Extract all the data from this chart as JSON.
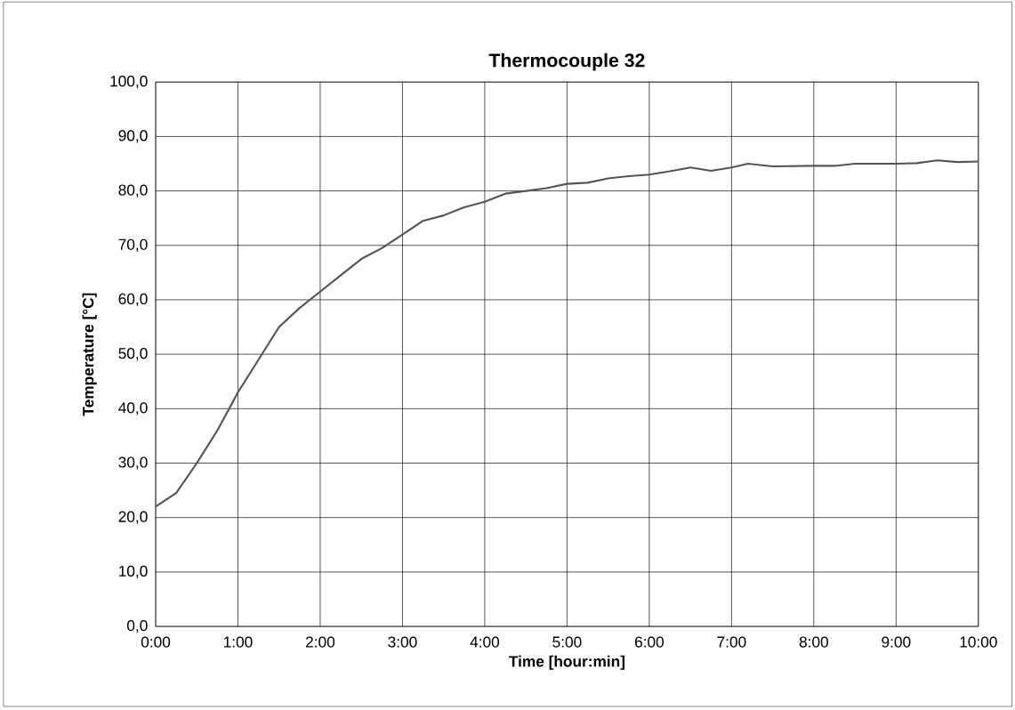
{
  "chart_data": {
    "type": "line",
    "title": "Thermocouple 32",
    "xlabel": "Time [hour:min]",
    "ylabel": "Temperature [°C]",
    "x": [
      0,
      0.25,
      0.5,
      0.75,
      1.0,
      1.25,
      1.5,
      1.75,
      2.0,
      2.25,
      2.5,
      2.75,
      3.0,
      3.25,
      3.5,
      3.75,
      4.0,
      4.25,
      4.5,
      4.75,
      5.0,
      5.25,
      5.5,
      5.75,
      6.0,
      6.25,
      6.5,
      6.75,
      7.0,
      7.2,
      7.5,
      8.0,
      8.25,
      8.5,
      9.0,
      9.25,
      9.5,
      9.75,
      10.0
    ],
    "series": [
      {
        "color": "#555555",
        "values": [
          22,
          24.5,
          30,
          36,
          43,
          49,
          55,
          58.5,
          61.5,
          64.5,
          67.5,
          69.5,
          72,
          74.5,
          75.5,
          77,
          78,
          79.5,
          80,
          80.5,
          81.3,
          81.5,
          82.3,
          82.7,
          83,
          83.6,
          84.3,
          83.7,
          84.3,
          85,
          84.5,
          84.6,
          84.6,
          85,
          85,
          85.1,
          85.6,
          85.3,
          85.4
        ]
      }
    ],
    "xlim": [
      0,
      10
    ],
    "ylim": [
      0,
      100
    ],
    "xticks": [
      {
        "value": 0,
        "label": "0:00"
      },
      {
        "value": 1,
        "label": "1:00"
      },
      {
        "value": 2,
        "label": "2:00"
      },
      {
        "value": 3,
        "label": "3:00"
      },
      {
        "value": 4,
        "label": "4:00"
      },
      {
        "value": 5,
        "label": "5:00"
      },
      {
        "value": 6,
        "label": "6:00"
      },
      {
        "value": 7,
        "label": "7:00"
      },
      {
        "value": 8,
        "label": "8:00"
      },
      {
        "value": 9,
        "label": "9:00"
      },
      {
        "value": 10,
        "label": "10:00"
      }
    ],
    "yticks": [
      {
        "value": 0,
        "label": "0,0"
      },
      {
        "value": 10,
        "label": "10,0"
      },
      {
        "value": 20,
        "label": "20,0"
      },
      {
        "value": 30,
        "label": "30,0"
      },
      {
        "value": 40,
        "label": "40,0"
      },
      {
        "value": 50,
        "label": "50,0"
      },
      {
        "value": 60,
        "label": "60,0"
      },
      {
        "value": 70,
        "label": "70,0"
      },
      {
        "value": 80,
        "label": "80,0"
      },
      {
        "value": 90,
        "label": "90,0"
      },
      {
        "value": 100,
        "label": "100,0"
      }
    ],
    "grid": true,
    "marker": "none",
    "line_style": "solid"
  }
}
